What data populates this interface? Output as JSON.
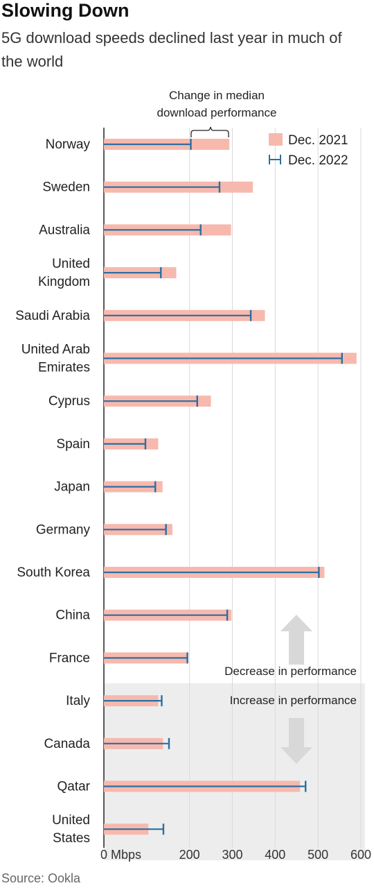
{
  "header": {
    "title": "Slowing Down",
    "subtitle": "5G download speeds declined last year in much of the world"
  },
  "footer": {
    "source": "Source: Ookla"
  },
  "annotations": {
    "change_label_1": "Change in median",
    "change_label_2": "download performance",
    "decrease": "Decrease in performance",
    "increase": "Increase in performance"
  },
  "colors": {
    "dec2021": "#f7b9ae",
    "dec2022": "#2b6fa0",
    "increase_zone": "#ededed",
    "arrow": "#d8d8d8"
  },
  "chart_data": {
    "type": "bar",
    "title": "Slowing Down",
    "subtitle": "5G download speeds declined last year in much of the world",
    "xlim": [
      0,
      600
    ],
    "x_ticks": [
      0,
      200,
      300,
      400,
      500,
      600
    ],
    "x_tick_labels": [
      "0 Mbps",
      "200",
      "300",
      "400",
      "500",
      "600"
    ],
    "grid": true,
    "legend_position": "top-right",
    "categories": [
      [
        "Norway"
      ],
      [
        "Sweden"
      ],
      [
        "Australia"
      ],
      [
        "United",
        "Kingdom"
      ],
      [
        "Saudi Arabia"
      ],
      [
        "United Arab",
        "Emirates"
      ],
      [
        "Cyprus"
      ],
      [
        "Spain"
      ],
      [
        "Japan"
      ],
      [
        "Germany"
      ],
      [
        "South Korea"
      ],
      [
        "China"
      ],
      [
        "France"
      ],
      [
        "Italy"
      ],
      [
        "Canada"
      ],
      [
        "Qatar"
      ],
      [
        "United",
        "States"
      ]
    ],
    "series": [
      {
        "name": "Dec. 2021",
        "values": [
          293,
          348,
          297,
          169,
          376,
          590,
          250,
          127,
          137,
          160,
          515,
          298,
          197,
          127,
          138,
          458,
          104
        ]
      },
      {
        "name": "Dec. 2022",
        "values": [
          203,
          270,
          226,
          133,
          343,
          556,
          218,
          97,
          120,
          145,
          502,
          288,
          195,
          135,
          152,
          471,
          139
        ]
      }
    ]
  }
}
